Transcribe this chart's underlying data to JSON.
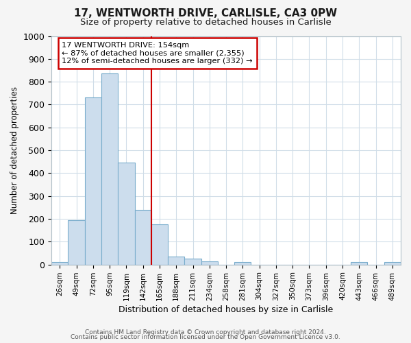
{
  "title1": "17, WENTWORTH DRIVE, CARLISLE, CA3 0PW",
  "title2": "Size of property relative to detached houses in Carlisle",
  "xlabel": "Distribution of detached houses by size in Carlisle",
  "ylabel": "Number of detached properties",
  "bar_labels": [
    "26sqm",
    "49sqm",
    "72sqm",
    "95sqm",
    "119sqm",
    "142sqm",
    "165sqm",
    "188sqm",
    "211sqm",
    "234sqm",
    "258sqm",
    "281sqm",
    "304sqm",
    "327sqm",
    "350sqm",
    "373sqm",
    "396sqm",
    "420sqm",
    "443sqm",
    "466sqm",
    "489sqm"
  ],
  "bar_values": [
    10,
    195,
    730,
    835,
    445,
    240,
    175,
    35,
    25,
    15,
    0,
    10,
    0,
    0,
    0,
    0,
    0,
    0,
    10,
    0,
    10
  ],
  "bar_color": "#ccdded",
  "bar_edge_color": "#7aadcc",
  "vline_color": "#cc0000",
  "vline_label_idx": 6,
  "ylim": [
    0,
    1000
  ],
  "yticks": [
    0,
    100,
    200,
    300,
    400,
    500,
    600,
    700,
    800,
    900,
    1000
  ],
  "annotation_text": "17 WENTWORTH DRIVE: 154sqm\n← 87% of detached houses are smaller (2,355)\n12% of semi-detached houses are larger (332) →",
  "annotation_box_color": "#cc0000",
  "footer1": "Contains HM Land Registry data © Crown copyright and database right 2024.",
  "footer2": "Contains public sector information licensed under the Open Government Licence v3.0.",
  "fig_bg_color": "#f5f5f5",
  "plot_bg_color": "#ffffff",
  "grid_color": "#d0dde8"
}
